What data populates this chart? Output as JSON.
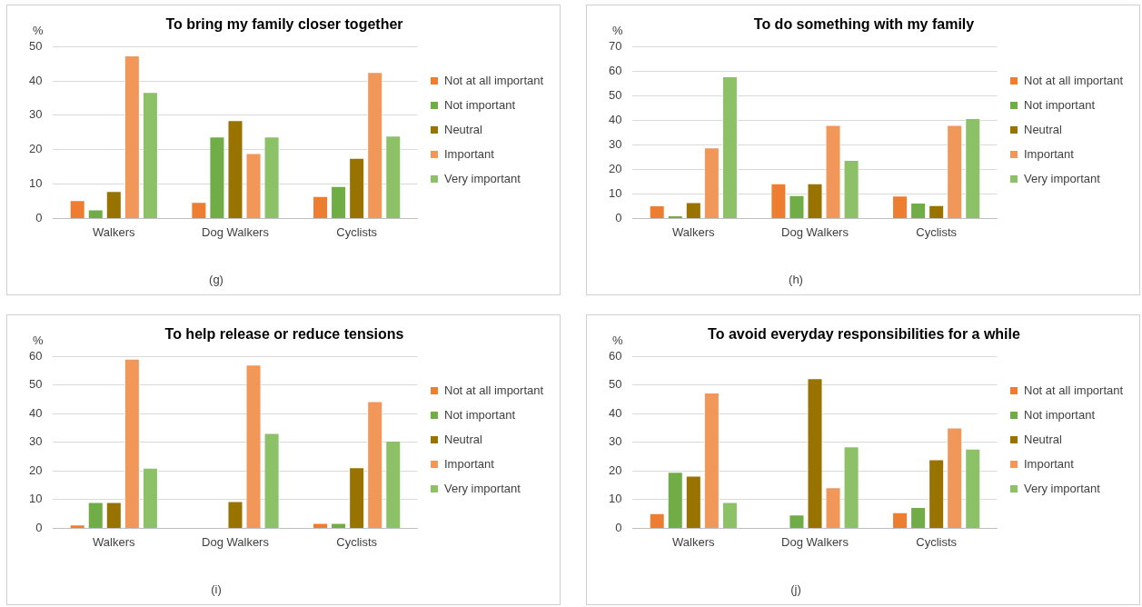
{
  "chart_data": [
    {
      "type": "bar",
      "title": "To bring my family closer together",
      "ylabel": "%",
      "categories": [
        "Walkers",
        "Dog Walkers",
        "Cyclists"
      ],
      "ylim": [
        0,
        50
      ],
      "yticks": [
        0,
        10,
        20,
        30,
        40,
        50
      ],
      "grid": "y",
      "legend": "right",
      "annotations": [
        "(g)"
      ],
      "series": [
        {
          "name": "Not at all important",
          "color": "#ed7d31",
          "values": [
            5.3,
            4.8,
            6.5
          ]
        },
        {
          "name": "Not important",
          "color": "#70ad47",
          "values": [
            2.6,
            23.8,
            9.4
          ]
        },
        {
          "name": "Neutral",
          "color": "#997300",
          "values": [
            8,
            28.6,
            17.6
          ]
        },
        {
          "name": "Important",
          "color": "#f1975a",
          "values": [
            47.4,
            19,
            42.6
          ]
        },
        {
          "name": "Very important",
          "color": "#8cc168",
          "values": [
            36.8,
            23.8,
            24.1
          ]
        }
      ]
    },
    {
      "type": "bar",
      "title": "To do something with my family",
      "ylabel": "%",
      "categories": [
        "Walkers",
        "Dog Walkers",
        "Cyclists"
      ],
      "ylim": [
        0,
        70
      ],
      "yticks": [
        0,
        10,
        20,
        30,
        40,
        50,
        60,
        70
      ],
      "grid": "y",
      "legend": "right",
      "annotations": [
        "(h)"
      ],
      "series": [
        {
          "name": "Not at all important",
          "color": "#ed7d31",
          "values": [
            5.3,
            14.3,
            9.3
          ]
        },
        {
          "name": "Not important",
          "color": "#70ad47",
          "values": [
            1.3,
            9.5,
            6.4
          ]
        },
        {
          "name": "Neutral",
          "color": "#997300",
          "values": [
            6.6,
            14.3,
            5.4
          ]
        },
        {
          "name": "Important",
          "color": "#f1975a",
          "values": [
            28.9,
            38.1,
            38.1
          ]
        },
        {
          "name": "Very important",
          "color": "#8cc168",
          "values": [
            57.9,
            23.8,
            40.8
          ]
        }
      ]
    },
    {
      "type": "bar",
      "title": "To help release or reduce tensions",
      "ylabel": "%",
      "categories": [
        "Walkers",
        "Dog Walkers",
        "Cyclists"
      ],
      "ylim": [
        0,
        60
      ],
      "yticks": [
        0,
        10,
        20,
        30,
        40,
        50,
        60
      ],
      "grid": "y",
      "legend": "right",
      "annotations": [
        "(i)"
      ],
      "series": [
        {
          "name": "Not at all important",
          "color": "#ed7d31",
          "values": [
            1.3,
            0,
            1.9
          ]
        },
        {
          "name": "Not important",
          "color": "#70ad47",
          "values": [
            9.2,
            0,
            1.9
          ]
        },
        {
          "name": "Neutral",
          "color": "#997300",
          "values": [
            9.2,
            9.5,
            21.3
          ]
        },
        {
          "name": "Important",
          "color": "#f1975a",
          "values": [
            59.2,
            57.1,
            44.4
          ]
        },
        {
          "name": "Very important",
          "color": "#8cc168",
          "values": [
            21.1,
            33.3,
            30.6
          ]
        }
      ]
    },
    {
      "type": "bar",
      "title": "To avoid everyday responsibilities for a while",
      "ylabel": "%",
      "categories": [
        "Walkers",
        "Dog Walkers",
        "Cyclists"
      ],
      "ylim": [
        0,
        60
      ],
      "yticks": [
        0,
        10,
        20,
        30,
        40,
        50,
        60
      ],
      "grid": "y",
      "legend": "right",
      "annotations": [
        "(j)"
      ],
      "series": [
        {
          "name": "Not at all important",
          "color": "#ed7d31",
          "values": [
            5.3,
            0,
            5.6
          ]
        },
        {
          "name": "Not important",
          "color": "#70ad47",
          "values": [
            19.7,
            4.8,
            7.4
          ]
        },
        {
          "name": "Neutral",
          "color": "#997300",
          "values": [
            18.4,
            52.4,
            24.1
          ]
        },
        {
          "name": "Important",
          "color": "#f1975a",
          "values": [
            47.4,
            14.3,
            35.2
          ]
        },
        {
          "name": "Very important",
          "color": "#8cc168",
          "values": [
            9.2,
            28.6,
            27.8
          ]
        }
      ]
    }
  ]
}
